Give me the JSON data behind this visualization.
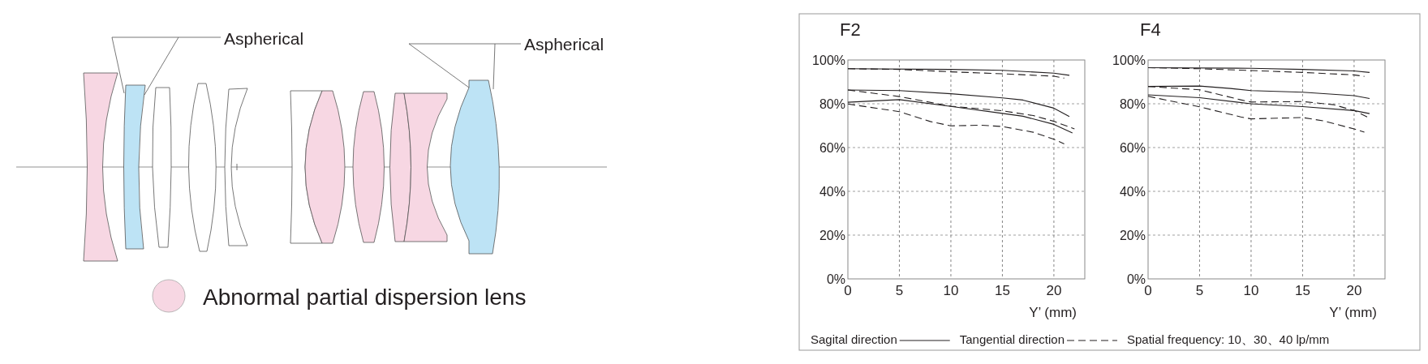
{
  "chart_data": [
    {
      "type": "other",
      "annotations": [
        "Aspherical",
        "Aspherical",
        "Abnormal partial dispersion lens"
      ]
    },
    {
      "type": "line",
      "title": "F2",
      "xlabel": "Y’ (mm)",
      "xlim": [
        0,
        23
      ],
      "ylim": [
        0,
        100
      ],
      "xticks": [
        0,
        5,
        10,
        15,
        20
      ],
      "yticks": [
        {
          "value": 0,
          "label": "0%"
        },
        {
          "value": 20,
          "label": "20%"
        },
        {
          "value": 40,
          "label": "40%"
        },
        {
          "value": 60,
          "label": "60%"
        },
        {
          "value": 80,
          "label": "80%"
        },
        {
          "value": 100,
          "label": "100%"
        }
      ],
      "grid": true,
      "legend": "bottom",
      "annotations": [
        "Spatial frequency: 10、30、40 lp/mm"
      ],
      "series": [
        {
          "name": "Sagital direction",
          "color": "#231f20",
          "line_style": "solid",
          "x": [
            0,
            10,
            15,
            20,
            21.5
          ],
          "values": [
            96,
            95.7,
            95.3,
            94,
            93
          ]
        },
        {
          "name": "Tangential direction",
          "color": "#231f20",
          "line_style": "dashed",
          "x": [
            0,
            5,
            10,
            15,
            20,
            21
          ],
          "values": [
            96,
            95.7,
            94.6,
            93.7,
            92.6,
            91.7
          ]
        },
        {
          "color": "#231f20",
          "line_style": "solid",
          "x": [
            0,
            5,
            10,
            15,
            17,
            20,
            21.5
          ],
          "values": [
            86.3,
            86,
            84.6,
            82.7,
            81.7,
            78,
            74.2
          ]
        },
        {
          "color": "#231f20",
          "line_style": "dashed",
          "x": [
            0,
            5,
            10,
            15,
            18,
            20,
            22
          ],
          "values": [
            86.3,
            83.3,
            78.9,
            76.8,
            74.6,
            72,
            68.5
          ]
        },
        {
          "color": "#231f20",
          "line_style": "solid",
          "x": [
            0,
            5,
            10,
            15,
            17,
            20,
            21.8
          ],
          "values": [
            80.7,
            81.9,
            78.8,
            75.6,
            74.3,
            70.6,
            66.7
          ]
        },
        {
          "color": "#231f20",
          "line_style": "dashed",
          "x": [
            0,
            5,
            8,
            10,
            13,
            15,
            18,
            20,
            21
          ],
          "values": [
            79.9,
            76.4,
            71.9,
            69.9,
            70.2,
            69.6,
            67,
            63.8,
            61.7
          ]
        }
      ]
    },
    {
      "type": "line",
      "title": "F4",
      "xlabel": "Y’ (mm)",
      "xlim": [
        0,
        23
      ],
      "ylim": [
        0,
        100
      ],
      "xticks": [
        0,
        5,
        10,
        15,
        20
      ],
      "yticks": [
        {
          "value": 0,
          "label": "0%"
        },
        {
          "value": 20,
          "label": "20%"
        },
        {
          "value": 40,
          "label": "40%"
        },
        {
          "value": 60,
          "label": "60%"
        },
        {
          "value": 80,
          "label": "80%"
        },
        {
          "value": 100,
          "label": "100%"
        }
      ],
      "grid": true,
      "series": [
        {
          "color": "#231f20",
          "line_style": "solid",
          "x": [
            0,
            10,
            15,
            20,
            21.5
          ],
          "values": [
            96.5,
            96.2,
            95.7,
            95,
            94.3
          ]
        },
        {
          "color": "#231f20",
          "line_style": "dashed",
          "x": [
            0,
            5,
            10,
            15,
            20,
            21
          ],
          "values": [
            96.5,
            96,
            95.2,
            94.3,
            93.2,
            92.5
          ]
        },
        {
          "color": "#231f20",
          "line_style": "solid",
          "x": [
            0,
            5,
            8,
            10,
            15,
            20,
            21.5
          ],
          "values": [
            87.9,
            88.1,
            87,
            86,
            85.3,
            83.7,
            82.4
          ]
        },
        {
          "color": "#231f20",
          "line_style": "dashed",
          "x": [
            0,
            5,
            9,
            10,
            15,
            18,
            20,
            21.5
          ],
          "values": [
            87.9,
            86.4,
            81.8,
            80.8,
            81,
            79.6,
            76.9,
            73.4
          ]
        },
        {
          "color": "#231f20",
          "line_style": "solid",
          "x": [
            0,
            5,
            10,
            15,
            20,
            21.5
          ],
          "values": [
            84.1,
            82.8,
            80,
            78.7,
            76.9,
            75.5
          ]
        },
        {
          "color": "#231f20",
          "line_style": "dashed",
          "x": [
            0,
            5,
            9,
            10,
            15,
            17,
            20,
            21
          ],
          "values": [
            83.4,
            78.6,
            74,
            73.1,
            73.7,
            72.2,
            68.5,
            67
          ]
        }
      ]
    }
  ]
}
